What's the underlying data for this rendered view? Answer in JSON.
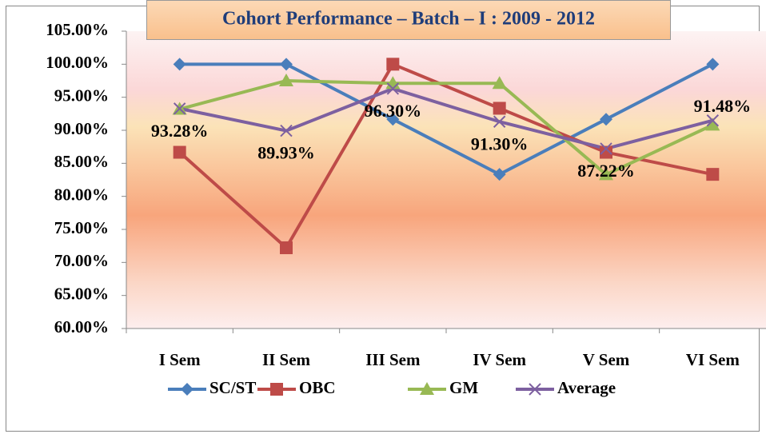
{
  "chart_data": {
    "type": "line",
    "title": "Cohort Performance – Batch – I  :  2009 - 2012",
    "categories": [
      "I Sem",
      "II Sem",
      "III Sem",
      "IV Sem",
      "V Sem",
      "VI Sem"
    ],
    "series": [
      {
        "name": "SC/ST",
        "color": "#4a7ebb",
        "marker": "diamond",
        "values": [
          100,
          100,
          91.67,
          83.33,
          91.67,
          100
        ]
      },
      {
        "name": "OBC",
        "color": "#be4b48",
        "marker": "square",
        "values": [
          86.67,
          72.22,
          100,
          93.33,
          86.67,
          83.33
        ]
      },
      {
        "name": "GM",
        "color": "#98b954",
        "marker": "triangle",
        "values": [
          93.2,
          97.5,
          97.1,
          97.1,
          83.3,
          90.8
        ]
      },
      {
        "name": "Average",
        "color": "#7d60a0",
        "marker": "x",
        "values": [
          93.28,
          89.93,
          96.3,
          91.3,
          87.22,
          91.48
        ],
        "value_labels": [
          "93.28%",
          "89.93%",
          "96.30%",
          "91.30%",
          "87.22%",
          "91.48%"
        ]
      }
    ],
    "ylim": [
      60,
      105
    ],
    "yticks": [
      {
        "value": 60,
        "label": "60.00%"
      },
      {
        "value": 65,
        "label": "65.00%"
      },
      {
        "value": 70,
        "label": "70.00%"
      },
      {
        "value": 75,
        "label": "75.00%"
      },
      {
        "value": 80,
        "label": "80.00%"
      },
      {
        "value": 85,
        "label": "85.00%"
      },
      {
        "value": 90,
        "label": "90.00%"
      },
      {
        "value": 95,
        "label": "95.00%"
      },
      {
        "value": 100,
        "label": "100.00%"
      },
      {
        "value": 105,
        "label": "105.00%"
      }
    ],
    "grid": false,
    "legend": "bottom"
  }
}
